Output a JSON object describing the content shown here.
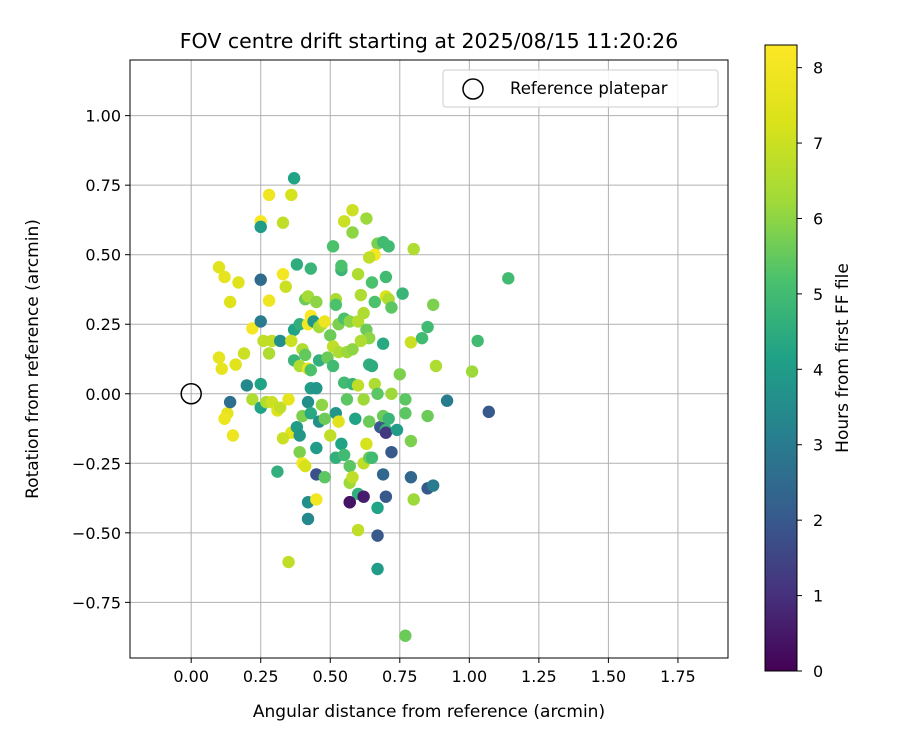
{
  "chart_data": {
    "type": "scatter",
    "title": "FOV centre drift starting at 2025/08/15 11:20:26",
    "xlabel": "Angular distance from reference (arcmin)",
    "ylabel": "Rotation from reference (arcmin)",
    "xlim": [
      -0.22,
      1.93
    ],
    "ylim": [
      -0.95,
      1.2
    ],
    "xticks": [
      0.0,
      0.25,
      0.5,
      0.75,
      1.0,
      1.25,
      1.5,
      1.75
    ],
    "xtick_labels": [
      "0.00",
      "0.25",
      "0.50",
      "0.75",
      "1.00",
      "1.25",
      "1.50",
      "1.75"
    ],
    "yticks": [
      -0.75,
      -0.5,
      -0.25,
      0.0,
      0.25,
      0.5,
      0.75,
      1.0
    ],
    "ytick_labels": [
      "−0.75",
      "−0.50",
      "−0.25",
      "0.00",
      "0.25",
      "0.50",
      "0.75",
      "1.00"
    ],
    "grid": true,
    "legend": {
      "position": "top-right",
      "entries": [
        "Reference platepar"
      ]
    },
    "reference_point": {
      "x": 0.0,
      "y": 0.0,
      "marker": "open-circle"
    },
    "colorbar": {
      "label": "Hours from first FF file",
      "colormap": "viridis",
      "range": [
        0,
        8.3
      ],
      "ticks": [
        0,
        1,
        2,
        3,
        4,
        5,
        6,
        7,
        8
      ],
      "tick_labels": [
        "0",
        "1",
        "2",
        "3",
        "4",
        "5",
        "6",
        "7",
        "8"
      ]
    },
    "points": [
      [
        0.37,
        0.775,
        4.2
      ],
      [
        0.28,
        0.715,
        7.9
      ],
      [
        0.36,
        0.715,
        7.2
      ],
      [
        0.25,
        0.62,
        8.1
      ],
      [
        0.33,
        0.615,
        6.8
      ],
      [
        0.25,
        0.6,
        4.0
      ],
      [
        0.58,
        0.66,
        7.0
      ],
      [
        0.55,
        0.62,
        7.0
      ],
      [
        0.63,
        0.63,
        6.2
      ],
      [
        0.58,
        0.58,
        6.0
      ],
      [
        0.51,
        0.53,
        5.2
      ],
      [
        0.67,
        0.54,
        5.8
      ],
      [
        0.69,
        0.545,
        5.0
      ],
      [
        0.71,
        0.53,
        5.0
      ],
      [
        0.8,
        0.52,
        6.5
      ],
      [
        0.66,
        0.5,
        8.0
      ],
      [
        0.64,
        0.49,
        6.8
      ],
      [
        0.1,
        0.455,
        7.5
      ],
      [
        0.12,
        0.42,
        7.6
      ],
      [
        0.17,
        0.4,
        7.4
      ],
      [
        0.25,
        0.41,
        2.5
      ],
      [
        0.33,
        0.43,
        8.0
      ],
      [
        0.38,
        0.465,
        4.5
      ],
      [
        0.43,
        0.45,
        4.8
      ],
      [
        0.54,
        0.445,
        4.8
      ],
      [
        0.54,
        0.46,
        5.2
      ],
      [
        0.6,
        0.43,
        6.5
      ],
      [
        0.65,
        0.4,
        5.2
      ],
      [
        0.7,
        0.42,
        5.0
      ],
      [
        1.14,
        0.415,
        5.0
      ],
      [
        0.14,
        0.33,
        7.4
      ],
      [
        0.28,
        0.335,
        7.9
      ],
      [
        0.34,
        0.385,
        7.0
      ],
      [
        0.41,
        0.34,
        5.6
      ],
      [
        0.42,
        0.35,
        6.3
      ],
      [
        0.45,
        0.33,
        6.0
      ],
      [
        0.52,
        0.34,
        6.4
      ],
      [
        0.52,
        0.32,
        5.2
      ],
      [
        0.61,
        0.355,
        6.5
      ],
      [
        0.66,
        0.33,
        5.2
      ],
      [
        0.7,
        0.35,
        7.3
      ],
      [
        0.71,
        0.34,
        6.5
      ],
      [
        0.72,
        0.31,
        5.4
      ],
      [
        0.76,
        0.36,
        4.8
      ],
      [
        0.87,
        0.32,
        5.8
      ],
      [
        0.22,
        0.235,
        8.0
      ],
      [
        0.25,
        0.26,
        3.0
      ],
      [
        0.29,
        0.19,
        6.8
      ],
      [
        0.37,
        0.23,
        4.2
      ],
      [
        0.39,
        0.25,
        4.6
      ],
      [
        0.42,
        0.25,
        8.0
      ],
      [
        0.43,
        0.28,
        8.2
      ],
      [
        0.44,
        0.26,
        3.8
      ],
      [
        0.46,
        0.24,
        6.3
      ],
      [
        0.47,
        0.25,
        6.5
      ],
      [
        0.48,
        0.26,
        7.8
      ],
      [
        0.5,
        0.21,
        5.6
      ],
      [
        0.53,
        0.25,
        5.8
      ],
      [
        0.55,
        0.27,
        5.2
      ],
      [
        0.57,
        0.26,
        6.0
      ],
      [
        0.6,
        0.26,
        6.6
      ],
      [
        0.62,
        0.29,
        6.5
      ],
      [
        0.63,
        0.23,
        5.6
      ],
      [
        0.64,
        0.2,
        6.0
      ],
      [
        0.69,
        0.18,
        4.4
      ],
      [
        0.79,
        0.185,
        7.0
      ],
      [
        0.83,
        0.2,
        5.0
      ],
      [
        0.85,
        0.24,
        5.0
      ],
      [
        1.03,
        0.19,
        5.0
      ],
      [
        0.1,
        0.13,
        7.6
      ],
      [
        0.11,
        0.09,
        7.6
      ],
      [
        0.16,
        0.105,
        7.5
      ],
      [
        0.19,
        0.145,
        7.0
      ],
      [
        0.26,
        0.19,
        6.8
      ],
      [
        0.28,
        0.145,
        6.5
      ],
      [
        0.32,
        0.19,
        3.6
      ],
      [
        0.36,
        0.19,
        7.0
      ],
      [
        0.37,
        0.12,
        4.8
      ],
      [
        0.39,
        0.1,
        6.5
      ],
      [
        0.4,
        0.16,
        6.5
      ],
      [
        0.41,
        0.14,
        5.5
      ],
      [
        0.42,
        0.09,
        7.7
      ],
      [
        0.43,
        0.085,
        5.2
      ],
      [
        0.46,
        0.12,
        4.6
      ],
      [
        0.49,
        0.13,
        5.6
      ],
      [
        0.51,
        0.1,
        5.0
      ],
      [
        0.51,
        0.17,
        6.8
      ],
      [
        0.53,
        0.15,
        6.5
      ],
      [
        0.56,
        0.15,
        6.2
      ],
      [
        0.58,
        0.16,
        6.0
      ],
      [
        0.61,
        0.19,
        6.5
      ],
      [
        0.64,
        0.105,
        4.6
      ],
      [
        0.65,
        0.1,
        4.5
      ],
      [
        0.75,
        0.07,
        5.8
      ],
      [
        0.88,
        0.1,
        6.5
      ],
      [
        1.01,
        0.08,
        6.2
      ],
      [
        0.13,
        -0.07,
        7.6
      ],
      [
        0.12,
        -0.09,
        7.8
      ],
      [
        0.14,
        -0.03,
        2.6
      ],
      [
        0.15,
        -0.15,
        7.8
      ],
      [
        0.2,
        0.03,
        3.4
      ],
      [
        0.22,
        -0.02,
        6.5
      ],
      [
        0.25,
        0.035,
        4.2
      ],
      [
        0.25,
        -0.05,
        4.2
      ],
      [
        0.27,
        -0.03,
        6.5
      ],
      [
        0.29,
        -0.03,
        7.0
      ],
      [
        0.31,
        -0.06,
        7.4
      ],
      [
        0.32,
        -0.05,
        6.8
      ],
      [
        0.35,
        -0.02,
        7.6
      ],
      [
        0.36,
        -0.14,
        7.5
      ],
      [
        0.33,
        -0.16,
        7.0
      ],
      [
        0.38,
        -0.12,
        4.0
      ],
      [
        0.39,
        -0.15,
        3.8
      ],
      [
        0.4,
        -0.08,
        5.8
      ],
      [
        0.42,
        -0.03,
        3.6
      ],
      [
        0.43,
        -0.07,
        4.4
      ],
      [
        0.43,
        0.02,
        4.0
      ],
      [
        0.45,
        0.02,
        3.8
      ],
      [
        0.46,
        -0.1,
        3.6
      ],
      [
        0.47,
        -0.04,
        6.0
      ],
      [
        0.48,
        -0.09,
        5.6
      ],
      [
        0.5,
        -0.15,
        6.8
      ],
      [
        0.52,
        -0.07,
        3.8
      ],
      [
        0.53,
        -0.1,
        7.5
      ],
      [
        0.54,
        -0.18,
        4.2
      ],
      [
        0.55,
        0.04,
        5.0
      ],
      [
        0.56,
        -0.02,
        5.4
      ],
      [
        0.58,
        0.035,
        4.8
      ],
      [
        0.59,
        -0.09,
        4.2
      ],
      [
        0.6,
        0.03,
        6.8
      ],
      [
        0.62,
        -0.02,
        6.2
      ],
      [
        0.64,
        -0.1,
        5.6
      ],
      [
        0.66,
        0.035,
        6.5
      ],
      [
        0.67,
        0.0,
        5.4
      ],
      [
        0.68,
        -0.12,
        2.0
      ],
      [
        0.69,
        -0.08,
        5.6
      ],
      [
        0.7,
        -0.13,
        4.8
      ],
      [
        0.7,
        -0.14,
        1.2
      ],
      [
        0.71,
        -0.09,
        4.8
      ],
      [
        0.72,
        -0.21,
        2.0
      ],
      [
        0.72,
        0.0,
        6.2
      ],
      [
        0.74,
        -0.13,
        4.0
      ],
      [
        0.77,
        -0.02,
        5.4
      ],
      [
        0.77,
        -0.07,
        5.4
      ],
      [
        0.79,
        -0.17,
        5.8
      ],
      [
        0.85,
        -0.08,
        5.6
      ],
      [
        0.92,
        -0.025,
        3.0
      ],
      [
        1.07,
        -0.065,
        2.0
      ],
      [
        0.31,
        -0.28,
        4.6
      ],
      [
        0.39,
        -0.21,
        5.8
      ],
      [
        0.4,
        -0.25,
        8.0
      ],
      [
        0.41,
        -0.26,
        7.2
      ],
      [
        0.42,
        -0.39,
        3.6
      ],
      [
        0.45,
        -0.29,
        1.8
      ],
      [
        0.45,
        -0.38,
        8.0
      ],
      [
        0.45,
        -0.195,
        4.0
      ],
      [
        0.48,
        -0.3,
        5.4
      ],
      [
        0.52,
        -0.23,
        4.6
      ],
      [
        0.55,
        -0.22,
        5.0
      ],
      [
        0.57,
        -0.32,
        6.2
      ],
      [
        0.57,
        -0.26,
        5.4
      ],
      [
        0.57,
        -0.39,
        1.0
      ],
      [
        0.58,
        -0.3,
        6.8
      ],
      [
        0.6,
        -0.49,
        6.8
      ],
      [
        0.6,
        -0.36,
        4.6
      ],
      [
        0.62,
        -0.25,
        6.8
      ],
      [
        0.62,
        -0.37,
        0.6
      ],
      [
        0.63,
        -0.18,
        7.2
      ],
      [
        0.64,
        -0.23,
        5.6
      ],
      [
        0.65,
        -0.23,
        5.0
      ],
      [
        0.67,
        -0.51,
        2.0
      ],
      [
        0.67,
        -0.41,
        4.2
      ],
      [
        0.69,
        -0.29,
        2.4
      ],
      [
        0.7,
        -0.37,
        2.0
      ],
      [
        0.79,
        -0.3,
        2.4
      ],
      [
        0.8,
        -0.38,
        6.2
      ],
      [
        0.85,
        -0.34,
        2.0
      ],
      [
        0.87,
        -0.33,
        3.0
      ],
      [
        0.42,
        -0.45,
        3.4
      ],
      [
        0.35,
        -0.605,
        6.8
      ],
      [
        0.67,
        -0.63,
        4.0
      ],
      [
        0.77,
        -0.87,
        5.6
      ],
      [
        0.57,
        -0.39,
        0.4
      ]
    ]
  }
}
